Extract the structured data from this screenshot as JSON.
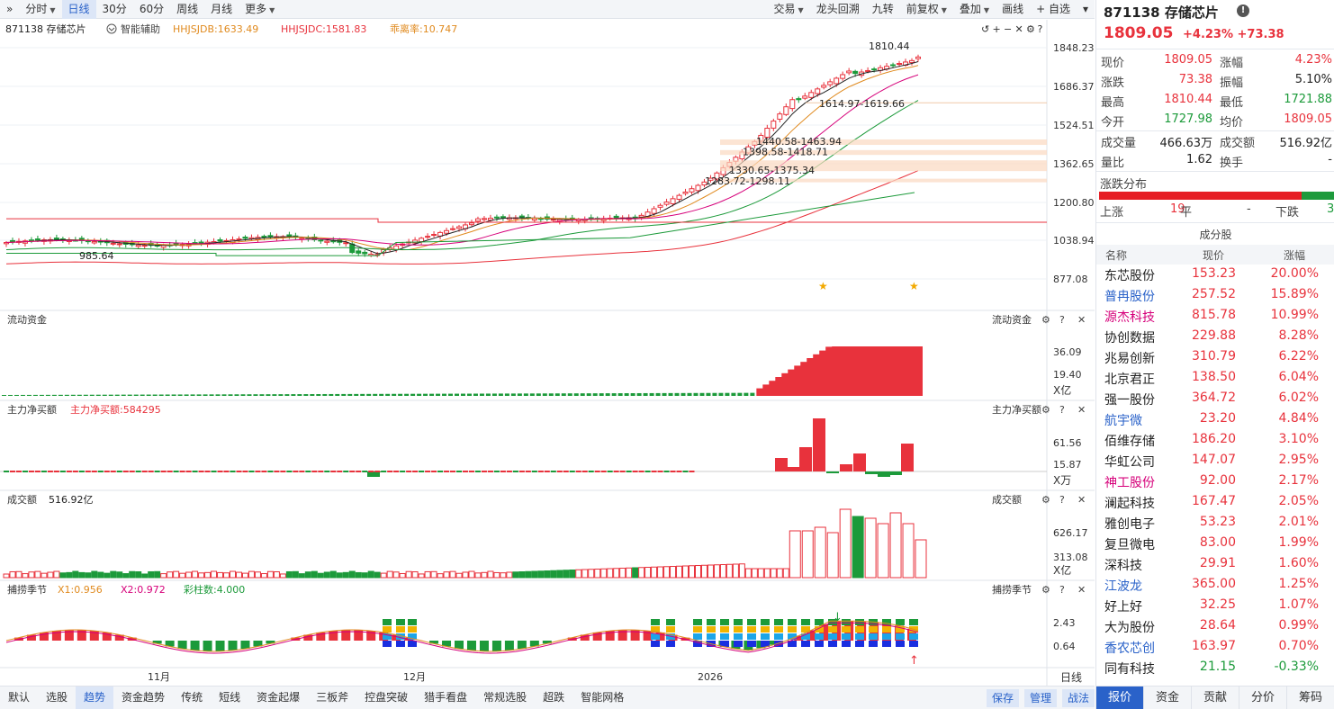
{
  "toolbar": {
    "expand": "»",
    "left": [
      {
        "label": "分时",
        "dropdown": true
      },
      {
        "label": "日线",
        "active": true
      },
      {
        "label": "30分"
      },
      {
        "label": "60分"
      },
      {
        "label": "周线"
      },
      {
        "label": "月线"
      },
      {
        "label": "更多",
        "dropdown": true
      }
    ],
    "right": [
      {
        "label": "交易",
        "dropdown": true
      },
      {
        "label": "龙头回溯"
      },
      {
        "label": "九转"
      },
      {
        "label": "前复权",
        "dropdown": true
      },
      {
        "label": "叠加",
        "dropdown": true
      },
      {
        "label": "画线"
      },
      {
        "label": "+ 自选"
      },
      {
        "label": "▾"
      }
    ]
  },
  "chart": {
    "stock_label": "871138 存储芯片",
    "assist": "智能辅助",
    "ind1": "HHJSJDB:1633.49",
    "ind2": "HHJSJDC:1581.83",
    "ind3": "乖离率:10.747",
    "price_axis": [
      "1848.23",
      "1686.37",
      "1524.51",
      "1362.65",
      "1200.80",
      "1038.94",
      "877.08"
    ],
    "annotations": {
      "high": "1810.44",
      "low": "985.64",
      "z1": "1614.97-1619.66",
      "z2": "1440.58-1463.94",
      "z3": "1398.58-1418.71",
      "z4": "1330.65-1375.34",
      "z5": "1283.72-1298.11"
    },
    "panels": {
      "liquid": {
        "title": "流动资金",
        "right_title": "流动资金",
        "axis": [
          "36.09",
          "19.40"
        ],
        "unit": "X亿"
      },
      "netbuy": {
        "title": "主力净买额",
        "value": "主力净买额:584295",
        "right_title": "主力净买额",
        "axis": [
          "61.56",
          "15.87"
        ],
        "unit": "X万"
      },
      "turnover": {
        "title": "成交额",
        "value": "516.92亿",
        "right_title": "成交额",
        "axis": [
          "626.17",
          "313.08"
        ],
        "unit": "X亿"
      },
      "season": {
        "title": "捕捞季节",
        "x1": "X1:0.956",
        "x2": "X2:0.972",
        "bars": "彩柱数:4.000",
        "right_title": "捕捞季节",
        "axis": [
          "2.43",
          "0.64"
        ]
      }
    },
    "date_labels": [
      "11月",
      "12月",
      "2026"
    ],
    "period_btn": "日线"
  },
  "bottombar": {
    "expand": "»",
    "tabs": [
      "默认",
      "选股",
      "趋势",
      "资金趋势",
      "传统",
      "短线",
      "资金起爆",
      "三板斧",
      "控盘突破",
      "猎手看盘",
      "常规选股",
      "超跌",
      "智能网格"
    ],
    "active": "趋势",
    "right": [
      "保存",
      "管理",
      "战法"
    ]
  },
  "quote": {
    "code_name": "871138 存储芯片",
    "price": "1809.05",
    "change_pct": "+4.23%",
    "change": "+73.38",
    "rows": [
      {
        "l1": "现价",
        "v1": "1809.05",
        "c1": "red",
        "l2": "涨幅",
        "v2": "4.23%",
        "c2": "red"
      },
      {
        "l1": "涨跌",
        "v1": "73.38",
        "c1": "red",
        "l2": "振幅",
        "v2": "5.10%",
        "c2": "blk"
      },
      {
        "l1": "最高",
        "v1": "1810.44",
        "c1": "red",
        "l2": "最低",
        "v2": "1721.88",
        "c2": "green"
      },
      {
        "l1": "今开",
        "v1": "1727.98",
        "c1": "green",
        "l2": "均价",
        "v2": "1809.05",
        "c2": "red"
      }
    ],
    "rows2": [
      {
        "l1": "成交量",
        "v1": "466.63万",
        "c1": "blk",
        "l2": "成交额",
        "v2": "516.92亿",
        "c2": "blk"
      },
      {
        "l1": "量比",
        "v1": "1.62",
        "c1": "blk",
        "l2": "换手",
        "v2": "-",
        "c2": "blk"
      }
    ],
    "dist": {
      "title": "涨跌分布",
      "up_label": "上涨",
      "up": "19",
      "flat_label": "平",
      "flat": "-",
      "down_label": "下跌",
      "down": "3",
      "up_frac": 0.86
    },
    "constituents": {
      "title": "成分股",
      "cols": [
        "名称",
        "现价",
        "涨幅"
      ],
      "items": [
        {
          "name": "东芯股份",
          "price": "153.23",
          "chg": "20.00%",
          "nc": "blk",
          "pc": "red"
        },
        {
          "name": "普冉股份",
          "price": "257.52",
          "chg": "15.89%",
          "nc": "blue",
          "pc": "red"
        },
        {
          "name": "源杰科技",
          "price": "815.78",
          "chg": "10.99%",
          "nc": "pink",
          "pc": "red"
        },
        {
          "name": "协创数据",
          "price": "229.88",
          "chg": "8.28%",
          "nc": "blk",
          "pc": "red"
        },
        {
          "name": "兆易创新",
          "price": "310.79",
          "chg": "6.22%",
          "nc": "blk",
          "pc": "red"
        },
        {
          "name": "北京君正",
          "price": "138.50",
          "chg": "6.04%",
          "nc": "blk",
          "pc": "red"
        },
        {
          "name": "强一股份",
          "price": "364.72",
          "chg": "6.02%",
          "nc": "blk",
          "pc": "red"
        },
        {
          "name": "航宇微",
          "price": "23.20",
          "chg": "4.84%",
          "nc": "blue",
          "pc": "red"
        },
        {
          "name": "佰维存储",
          "price": "186.20",
          "chg": "3.10%",
          "nc": "blk",
          "pc": "red"
        },
        {
          "name": "华虹公司",
          "price": "147.07",
          "chg": "2.95%",
          "nc": "blk",
          "pc": "red"
        },
        {
          "name": "神工股份",
          "price": "92.00",
          "chg": "2.17%",
          "nc": "pink",
          "pc": "red"
        },
        {
          "name": "澜起科技",
          "price": "167.47",
          "chg": "2.05%",
          "nc": "blk",
          "pc": "red"
        },
        {
          "name": "雅创电子",
          "price": "53.23",
          "chg": "2.01%",
          "nc": "blk",
          "pc": "red"
        },
        {
          "name": "复旦微电",
          "price": "83.00",
          "chg": "1.99%",
          "nc": "blk",
          "pc": "red"
        },
        {
          "name": "深科技",
          "price": "29.91",
          "chg": "1.60%",
          "nc": "blk",
          "pc": "red"
        },
        {
          "name": "江波龙",
          "price": "365.00",
          "chg": "1.25%",
          "nc": "blue",
          "pc": "red"
        },
        {
          "name": "好上好",
          "price": "32.25",
          "chg": "1.07%",
          "nc": "blk",
          "pc": "red"
        },
        {
          "name": "大为股份",
          "price": "28.64",
          "chg": "0.99%",
          "nc": "blk",
          "pc": "red"
        },
        {
          "name": "香农芯创",
          "price": "163.97",
          "chg": "0.70%",
          "nc": "blue",
          "pc": "red"
        },
        {
          "name": "同有科技",
          "price": "21.15",
          "chg": "-0.33%",
          "nc": "blk",
          "pc": "green"
        }
      ]
    },
    "tabs": [
      "报价",
      "资金",
      "贡献",
      "分价",
      "筹码"
    ],
    "active_tab": "报价"
  },
  "colors": {
    "up": "#e8323c",
    "down": "#1c9a3a",
    "accent": "#2a62c9"
  }
}
